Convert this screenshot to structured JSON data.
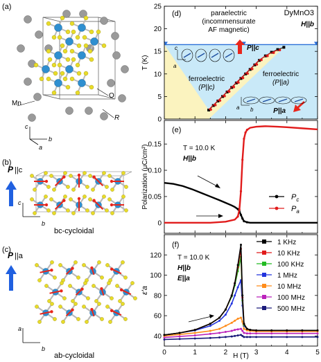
{
  "panels": {
    "a": {
      "label": "(a)",
      "atom_mn": "Mn",
      "atom_o": "O",
      "atom_r": "R",
      "axis_c": "c",
      "axis_b": "b",
      "axis_a": "a"
    },
    "b": {
      "label": "(b)",
      "pol_P": "P",
      "pol_rest": "||c",
      "caption": "bc-cycloidal",
      "axis_c": "c",
      "axis_b": "b"
    },
    "c": {
      "label": "(c)",
      "pol_P": "P",
      "pol_rest": "||a",
      "caption": "ab-cycloidal",
      "axis_a": "a",
      "axis_b": "b"
    }
  },
  "colors": {
    "mn_atom": "#2f8fd0",
    "o_atom": "#e8dc2a",
    "r_atom": "#9a9a9a",
    "spin_arrow": "#e8261c",
    "pol_arrow": "#2060e0",
    "series_c": "#000000",
    "series_a": "#e11b1b",
    "phase_para": "#ffffff",
    "phase_c": "#fbf3bf",
    "phase_a": "#c9e9f8",
    "boundary": "#2a6fd8"
  },
  "chart_data": [
    {
      "type": "scatter",
      "panel": "(d)",
      "material": "DyMnO3",
      "field_label": "H||b",
      "ylabel": "T (K)",
      "xlim": [
        0,
        5
      ],
      "ylim": [
        0,
        25
      ],
      "yticks": [
        "0",
        "5",
        "10",
        "15",
        "20",
        "25"
      ],
      "regions": [
        {
          "name": "paraelectric",
          "label1": "paraelectric",
          "label2": "(incommensurate",
          "label3": "AF magnetic)"
        },
        {
          "name": "ferro_c",
          "label1": "ferroelectric",
          "label2": "(P||c)",
          "arrow_label": "P||c"
        },
        {
          "name": "ferro_a",
          "label1": "ferroelectric",
          "label2": "(P||a)",
          "arrow_label": "P||a"
        }
      ],
      "boundary_T": 16.5,
      "inset_axes": {
        "c": "c",
        "a": "a",
        "b": "b"
      },
      "series": [
        {
          "name": "phase boundary",
          "color": "#000000",
          "x": [
            1.45,
            1.6,
            1.75,
            1.9,
            2.05,
            2.2,
            2.35,
            2.5,
            2.65,
            2.8,
            2.95,
            3.1,
            3.3,
            3.5,
            3.7,
            3.9
          ],
          "y": [
            2,
            3,
            4,
            5,
            6,
            7,
            8,
            9,
            10,
            11,
            12,
            13,
            14,
            14.8,
            15.4,
            15.9
          ]
        },
        {
          "name": "phase boundary (red)",
          "color": "#e11b1b",
          "x": [
            1.45,
            1.6,
            1.75,
            1.9,
            2.05,
            2.2,
            2.35,
            2.5,
            2.65,
            2.8,
            2.95,
            3.1,
            3.3,
            3.5,
            3.7
          ],
          "y": [
            2.1,
            3.1,
            4.1,
            5.1,
            6.1,
            7.1,
            8.1,
            9.1,
            10.1,
            11.1,
            12.1,
            13.1,
            14.0,
            14.7,
            15.3
          ]
        }
      ]
    },
    {
      "type": "line",
      "panel": "(e)",
      "temperature": "T = 10.0 K",
      "field_label": "H||b",
      "ylabel": "Polarization (μC/cm²)",
      "xlim": [
        0,
        5
      ],
      "ylim": [
        -0.02,
        0.195
      ],
      "yticks": [
        "0",
        "0.05",
        "0.10",
        "0.15"
      ],
      "series": [
        {
          "name": "Pc",
          "color": "#000000",
          "x": [
            0,
            0.3,
            0.6,
            0.9,
            1.2,
            1.5,
            1.8,
            2.0,
            2.2,
            2.3,
            2.4,
            2.45,
            2.5,
            2.55,
            2.6,
            2.7,
            2.8,
            3.0,
            3.5,
            4.0,
            4.5,
            5.0
          ],
          "y": [
            0.076,
            0.074,
            0.07,
            0.064,
            0.057,
            0.05,
            0.043,
            0.038,
            0.033,
            0.03,
            0.026,
            0.022,
            0.015,
            0.008,
            0.003,
            0.001,
            0.0,
            0.0,
            0.0,
            0.0,
            0.0,
            0.0
          ]
        },
        {
          "name": "Pa",
          "color": "#e11b1b",
          "x": [
            0,
            0.5,
            1.0,
            1.5,
            2.0,
            2.3,
            2.4,
            2.45,
            2.5,
            2.55,
            2.6,
            2.65,
            2.7,
            2.8,
            3.0,
            3.3,
            3.7,
            4.0,
            4.5,
            5.0
          ],
          "y": [
            0.0,
            0.0,
            0.0,
            0.0,
            0.002,
            0.006,
            0.012,
            0.025,
            0.06,
            0.12,
            0.16,
            0.172,
            0.177,
            0.181,
            0.183,
            0.184,
            0.183,
            0.182,
            0.18,
            0.178
          ]
        }
      ]
    },
    {
      "type": "line",
      "panel": "(f)",
      "temperature": "T = 10.0 K",
      "field_label": "H||b",
      "efield_label": "E||a",
      "ylabel": "ε'a",
      "xlabel": "H (T)",
      "xlim": [
        0,
        5
      ],
      "ylim": [
        30,
        140
      ],
      "xticks": [
        "0",
        "1",
        "2",
        "3",
        "4",
        "5"
      ],
      "yticks": [
        "40",
        "60",
        "80",
        "100",
        "120"
      ],
      "x": [
        0,
        0.5,
        1.0,
        1.5,
        1.8,
        2.0,
        2.2,
        2.3,
        2.4,
        2.5,
        2.55,
        2.6,
        2.7,
        2.8,
        3.0,
        3.5,
        4.0,
        4.5,
        5.0
      ],
      "series": [
        {
          "name": "1 KHz",
          "color": "#000000",
          "y": [
            41,
            43,
            46,
            52,
            58,
            66,
            80,
            92,
            110,
            130,
            80,
            52,
            47,
            46,
            45.5,
            45.5,
            45.5,
            45.5,
            45.5
          ]
        },
        {
          "name": "10 KHz",
          "color": "#e11b1b",
          "y": [
            41,
            43,
            46,
            52,
            58,
            66,
            80,
            92,
            108,
            126,
            78,
            52,
            47,
            46,
            45.5,
            45.5,
            45.5,
            45.5,
            45.5
          ]
        },
        {
          "name": "100 KHz",
          "color": "#22bb22",
          "y": [
            41,
            43,
            46,
            52,
            58,
            66,
            79,
            90,
            104,
            118,
            75,
            51,
            47,
            46,
            45.5,
            45.5,
            45.5,
            45.5,
            45.5
          ]
        },
        {
          "name": "1 MHz",
          "color": "#2233dd",
          "y": [
            41,
            43,
            45.5,
            50,
            55,
            61,
            72,
            80,
            88,
            95,
            70,
            50,
            47,
            46,
            45.5,
            45.5,
            45.5,
            45.5,
            45.5
          ]
        },
        {
          "name": "10 MHz",
          "color": "#ff8c1a",
          "y": [
            40,
            41.5,
            43,
            45,
            47,
            50,
            53,
            55,
            57,
            58,
            54,
            47,
            45.5,
            45,
            44.5,
            44.5,
            44.5,
            44.5,
            44.5
          ]
        },
        {
          "name": "100 MHz",
          "color": "#bb22bb",
          "y": [
            38.5,
            39.5,
            40.5,
            42,
            43,
            44,
            45,
            46,
            46.5,
            47,
            45,
            43,
            42.5,
            42.5,
            42.5,
            42.5,
            42.5,
            42.5,
            42.5
          ]
        },
        {
          "name": "500 MHz",
          "color": "#1a1a7a",
          "y": [
            36.5,
            37,
            37.5,
            38,
            38.5,
            39,
            39.5,
            40,
            40.5,
            41,
            40,
            39,
            39,
            39,
            39,
            39,
            39,
            39,
            39
          ]
        }
      ]
    }
  ]
}
